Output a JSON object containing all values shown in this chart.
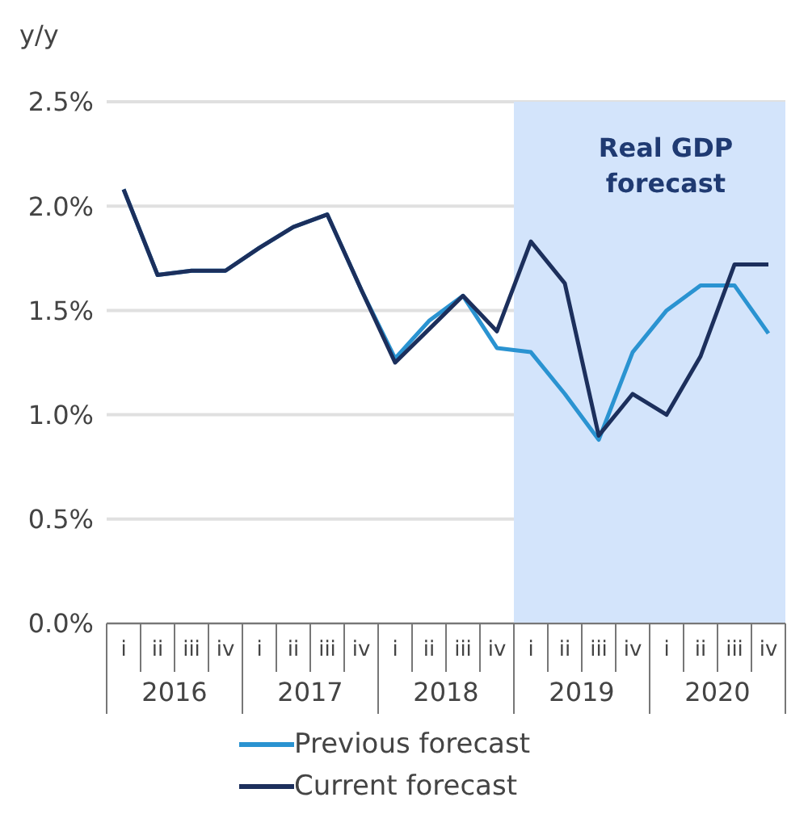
{
  "chart_data": {
    "type": "line",
    "ylabel": "y/y",
    "categories": [
      "i",
      "ii",
      "iii",
      "iv",
      "i",
      "ii",
      "iii",
      "iv",
      "i",
      "ii",
      "iii",
      "iv",
      "i",
      "ii",
      "iii",
      "iv",
      "i",
      "ii",
      "iii",
      "iv"
    ],
    "annotations": [
      "2016",
      "2017",
      "2018",
      "2019",
      "2020",
      "Real GDP forecast"
    ],
    "series": [
      {
        "name": "Previous forecast",
        "color": "#2a93d1",
        "values": [
          2.08,
          1.67,
          1.69,
          1.69,
          1.8,
          1.9,
          1.96,
          1.6,
          1.27,
          1.45,
          1.57,
          1.32,
          1.3,
          1.1,
          0.88,
          1.3,
          1.5,
          1.62,
          1.62,
          1.39
        ]
      },
      {
        "name": "Current forecast",
        "color": "#1c2f5c",
        "values": [
          2.08,
          1.67,
          1.69,
          1.69,
          1.8,
          1.9,
          1.96,
          1.6,
          1.25,
          1.41,
          1.57,
          1.4,
          1.83,
          1.63,
          0.9,
          1.1,
          1.0,
          1.28,
          1.72,
          1.72
        ]
      }
    ],
    "ylim": [
      0,
      2.5
    ],
    "yticks": [
      {
        "value": 0,
        "label": "0.0%"
      },
      {
        "value": 0.5,
        "label": "0.5%"
      },
      {
        "value": 1,
        "label": "1.0%"
      },
      {
        "value": 1.5,
        "label": "1.5%"
      },
      {
        "value": 2,
        "label": "2.0%"
      },
      {
        "value": 2.5,
        "label": "2.5%"
      }
    ],
    "grid": "y",
    "legend": "bottom",
    "marker": "none",
    "line_style": "solid"
  }
}
